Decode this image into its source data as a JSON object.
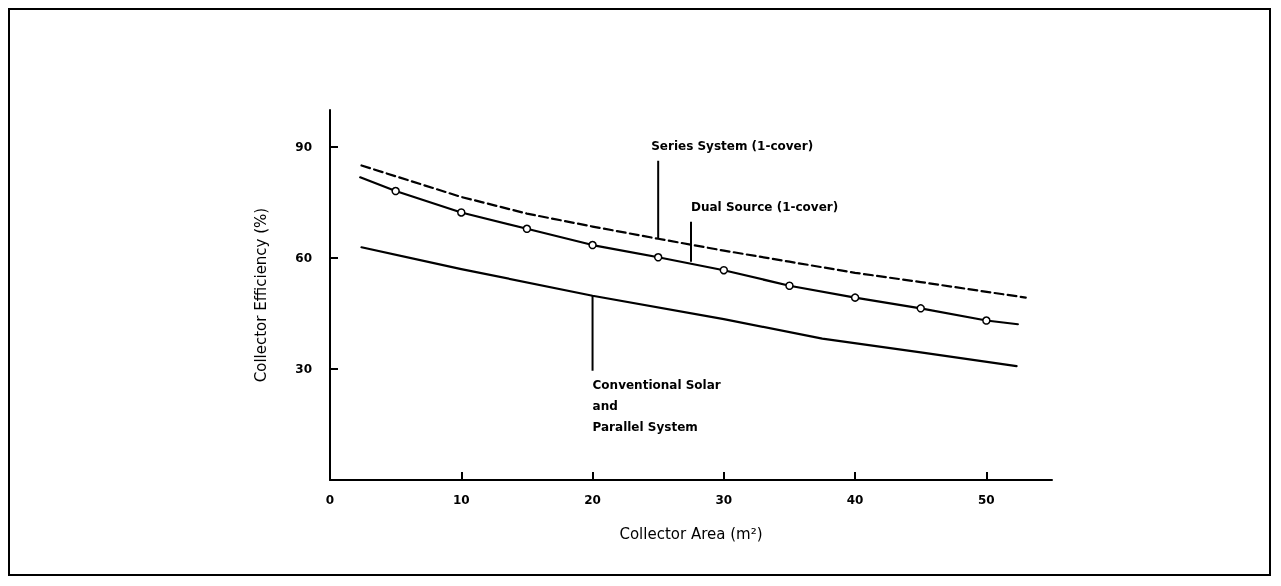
{
  "chart_data": {
    "type": "line",
    "xlabel": "Collector Area (m²)",
    "ylabel": "Collector Efficiency (%)",
    "xlim": [
      0,
      55
    ],
    "ylim": [
      0,
      100
    ],
    "xticks": [
      0,
      10,
      20,
      30,
      40,
      50
    ],
    "yticks": [
      30,
      60,
      90
    ],
    "grid": false,
    "series": [
      {
        "color": "#000000",
        "line_style": "dashed",
        "marker": "none",
        "x": [
          2.4,
          10,
          15,
          20,
          25,
          30,
          35,
          40,
          45,
          53
        ],
        "values": [
          85,
          76.5,
          72,
          68.5,
          65.2,
          62,
          59,
          56,
          53.5,
          49.3
        ]
      },
      {
        "color": "#000000",
        "line_style": "solid",
        "marker": "circle",
        "x": [
          2.3,
          5,
          10,
          15,
          20,
          25,
          30,
          35,
          40,
          45,
          50,
          52.4
        ],
        "values": [
          81.8,
          78.1,
          72.3,
          67.9,
          63.5,
          60.2,
          56.7,
          52.5,
          49.3,
          46.4,
          43.1,
          42.1
        ]
      },
      {
        "color": "#000000",
        "line_style": "solid",
        "marker": "none",
        "x": [
          2.4,
          10,
          20,
          30,
          37.5,
          45,
          52.3
        ],
        "values": [
          62.9,
          57,
          49.8,
          43.5,
          38.2,
          34.5,
          30.8
        ]
      }
    ],
    "annotations": [
      {
        "text": "Series System (1-cover)",
        "x": 25,
        "y": 65.2
      },
      {
        "text": "Dual Source (1-cover)",
        "x": 27.5,
        "y": 59
      },
      {
        "text": "Conventional Solar\nand\nParallel System",
        "x": 20,
        "y": 49.8
      }
    ]
  }
}
